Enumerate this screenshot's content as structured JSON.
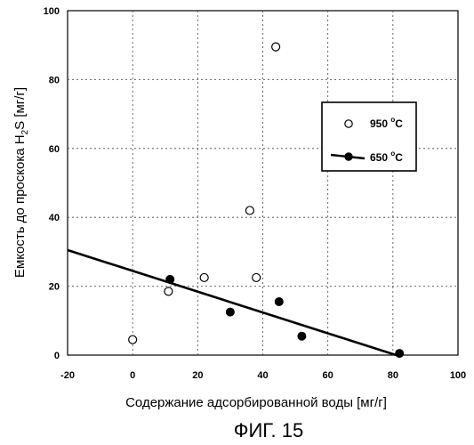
{
  "chart_data": {
    "type": "scatter",
    "xlabel": "Содержание адсорбированной воды [мг/г]",
    "ylabel_parts": {
      "prefix": "Емкость до проскока H",
      "subscript": "2",
      "suffix": "S [мг/г]"
    },
    "caption": "ФИГ. 15",
    "xlim": [
      -20,
      100
    ],
    "ylim": [
      0,
      100
    ],
    "xticks": [
      "-20",
      "0",
      "20",
      "40",
      "60",
      "80",
      "100"
    ],
    "yticks": [
      "0",
      "20",
      "40",
      "60",
      "80",
      "100"
    ],
    "grid": true,
    "legend_position": "right",
    "series": [
      {
        "name": "950 °C",
        "legend_label_main": "950 ",
        "legend_label_sup": "o",
        "legend_label_end": "C",
        "marker": "open-circle",
        "points": [
          {
            "x": 0,
            "y": 4.5
          },
          {
            "x": 11,
            "y": 18.5
          },
          {
            "x": 22,
            "y": 22.5
          },
          {
            "x": 36,
            "y": 42
          },
          {
            "x": 38,
            "y": 22.5
          },
          {
            "x": 44,
            "y": 89.5
          }
        ]
      },
      {
        "name": "650 °C",
        "legend_label_main": "650 ",
        "legend_label_sup": "o",
        "legend_label_end": "C",
        "marker": "filled-circle",
        "points": [
          {
            "x": 11.5,
            "y": 22
          },
          {
            "x": 30,
            "y": 12.5
          },
          {
            "x": 45,
            "y": 15.5
          },
          {
            "x": 52,
            "y": 5.5
          },
          {
            "x": 82,
            "y": 0.5
          }
        ],
        "trendline": {
          "x": [
            -20,
            81
          ],
          "y": [
            30.5,
            0
          ]
        }
      }
    ]
  }
}
